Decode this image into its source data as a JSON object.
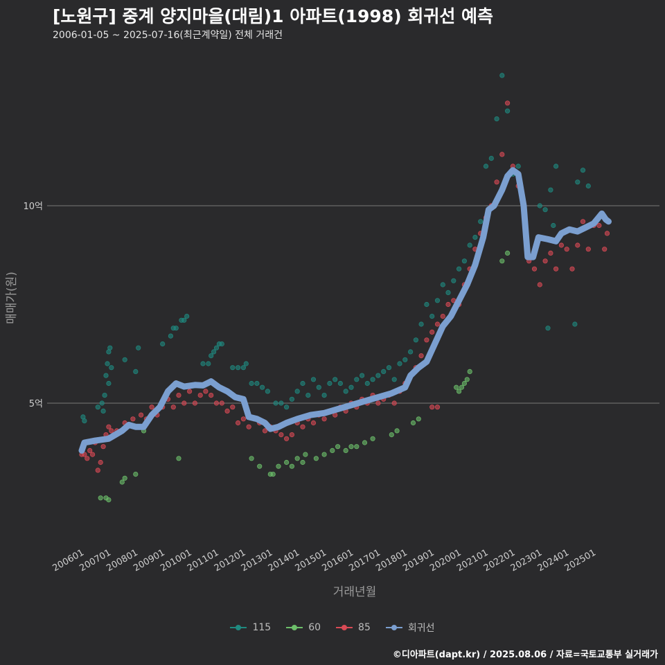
{
  "header": {
    "title": "[노원구] 중계 양지마을(대림)1 아파트(1998) 회귀선 예측",
    "subtitle": "2006-01-05 ~ 2025-07-16(최근계약일) 전체 거래건"
  },
  "caption": "©디아파트(dapt.kr) / 2025.08.06 / 자료=국토교통부 실거래가",
  "chart_data": {
    "type": "scatter",
    "xlabel": "거래년월",
    "ylabel": "매매가(원)",
    "x_range": [
      "2006-01",
      "2025-08"
    ],
    "y_range_eok": [
      2.5,
      14.0
    ],
    "y_ticks": [
      {
        "value": 5,
        "label": "5억"
      },
      {
        "value": 10,
        "label": "10억"
      }
    ],
    "x_ticks": [
      "200601",
      "200701",
      "200801",
      "200901",
      "201001",
      "201101",
      "201201",
      "201301",
      "201401",
      "201501",
      "201601",
      "201701",
      "201801",
      "201901",
      "202001",
      "202101",
      "202201",
      "202301",
      "202401",
      "202501"
    ],
    "grid": "horizontal major",
    "legend_position": "bottom",
    "legend": [
      "115",
      "60",
      "85",
      "회귀선"
    ],
    "colors": {
      "115": "#1f8a80",
      "60": "#6dbf6a",
      "85": "#d94a55",
      "회귀선": "#7b9fd0"
    },
    "series": [
      {
        "name": "115",
        "points": [
          [
            2006.05,
            4.65
          ],
          [
            2006.1,
            4.55
          ],
          [
            2006.6,
            4.9
          ],
          [
            2006.75,
            5.0
          ],
          [
            2006.8,
            4.8
          ],
          [
            2006.85,
            5.2
          ],
          [
            2006.9,
            5.7
          ],
          [
            2006.95,
            6.0
          ],
          [
            2007.0,
            6.3
          ],
          [
            2007.05,
            6.4
          ],
          [
            2007.1,
            5.9
          ],
          [
            2007.0,
            5.5
          ],
          [
            2007.6,
            6.1
          ],
          [
            2008.0,
            5.8
          ],
          [
            2008.1,
            6.4
          ],
          [
            2009.0,
            6.5
          ],
          [
            2009.3,
            6.7
          ],
          [
            2009.4,
            6.9
          ],
          [
            2009.5,
            6.9
          ],
          [
            2009.7,
            7.1
          ],
          [
            2009.8,
            7.1
          ],
          [
            2009.9,
            7.2
          ],
          [
            2010.5,
            6.0
          ],
          [
            2010.7,
            6.0
          ],
          [
            2010.8,
            6.2
          ],
          [
            2010.9,
            6.3
          ],
          [
            2011.0,
            6.4
          ],
          [
            2011.1,
            6.5
          ],
          [
            2011.2,
            6.5
          ],
          [
            2011.6,
            5.9
          ],
          [
            2011.8,
            5.9
          ],
          [
            2012.0,
            5.9
          ],
          [
            2012.1,
            6.0
          ],
          [
            2012.3,
            5.5
          ],
          [
            2012.5,
            5.5
          ],
          [
            2012.7,
            5.4
          ],
          [
            2012.9,
            5.3
          ],
          [
            2013.2,
            5.0
          ],
          [
            2013.4,
            5.0
          ],
          [
            2013.6,
            4.9
          ],
          [
            2013.8,
            5.1
          ],
          [
            2014.0,
            5.3
          ],
          [
            2014.2,
            5.5
          ],
          [
            2014.4,
            5.2
          ],
          [
            2014.6,
            5.6
          ],
          [
            2014.8,
            5.4
          ],
          [
            2015.0,
            5.2
          ],
          [
            2015.2,
            5.5
          ],
          [
            2015.4,
            5.6
          ],
          [
            2015.6,
            5.5
          ],
          [
            2015.8,
            5.3
          ],
          [
            2016.0,
            5.4
          ],
          [
            2016.2,
            5.6
          ],
          [
            2016.4,
            5.7
          ],
          [
            2016.6,
            5.5
          ],
          [
            2016.8,
            5.6
          ],
          [
            2017.0,
            5.7
          ],
          [
            2017.2,
            5.8
          ],
          [
            2017.4,
            5.9
          ],
          [
            2017.6,
            5.6
          ],
          [
            2017.8,
            6.0
          ],
          [
            2018.0,
            6.1
          ],
          [
            2018.2,
            6.3
          ],
          [
            2018.4,
            6.6
          ],
          [
            2018.6,
            7.0
          ],
          [
            2018.8,
            7.5
          ],
          [
            2019.0,
            7.2
          ],
          [
            2019.2,
            7.6
          ],
          [
            2019.4,
            8.0
          ],
          [
            2019.6,
            7.8
          ],
          [
            2019.8,
            8.1
          ],
          [
            2020.0,
            8.4
          ],
          [
            2020.2,
            8.6
          ],
          [
            2020.4,
            9.0
          ],
          [
            2020.6,
            9.2
          ],
          [
            2020.8,
            9.6
          ],
          [
            2021.0,
            11.0
          ],
          [
            2021.2,
            11.2
          ],
          [
            2021.4,
            12.2
          ],
          [
            2021.6,
            13.3
          ],
          [
            2021.8,
            12.4
          ],
          [
            2022.0,
            10.8
          ],
          [
            2022.2,
            11.0
          ],
          [
            2023.0,
            10.0
          ],
          [
            2023.2,
            9.9
          ],
          [
            2023.4,
            10.4
          ],
          [
            2023.5,
            9.5
          ],
          [
            2023.6,
            11.0
          ],
          [
            2024.4,
            10.6
          ],
          [
            2024.6,
            10.9
          ],
          [
            2024.8,
            10.5
          ],
          [
            2023.3,
            6.9
          ],
          [
            2024.3,
            7.0
          ]
        ]
      },
      {
        "name": "60",
        "points": [
          [
            2006.7,
            2.6
          ],
          [
            2006.9,
            2.6
          ],
          [
            2007.0,
            2.55
          ],
          [
            2007.5,
            3.0
          ],
          [
            2007.6,
            3.1
          ],
          [
            2008.0,
            3.2
          ],
          [
            2008.3,
            4.3
          ],
          [
            2009.6,
            3.6
          ],
          [
            2012.3,
            3.6
          ],
          [
            2012.6,
            3.4
          ],
          [
            2013.0,
            3.2
          ],
          [
            2013.1,
            3.2
          ],
          [
            2013.3,
            3.4
          ],
          [
            2013.6,
            3.5
          ],
          [
            2013.8,
            3.4
          ],
          [
            2014.0,
            3.6
          ],
          [
            2014.2,
            3.5
          ],
          [
            2014.3,
            3.7
          ],
          [
            2014.7,
            3.6
          ],
          [
            2015.0,
            3.7
          ],
          [
            2015.3,
            3.8
          ],
          [
            2015.5,
            3.9
          ],
          [
            2015.8,
            3.8
          ],
          [
            2016.0,
            3.9
          ],
          [
            2016.2,
            3.9
          ],
          [
            2016.5,
            4.0
          ],
          [
            2016.8,
            4.1
          ],
          [
            2017.5,
            4.2
          ],
          [
            2017.7,
            4.3
          ],
          [
            2018.3,
            4.5
          ],
          [
            2018.5,
            4.6
          ],
          [
            2019.9,
            5.4
          ],
          [
            2020.0,
            5.3
          ],
          [
            2020.1,
            5.4
          ],
          [
            2020.2,
            5.5
          ],
          [
            2020.3,
            5.6
          ],
          [
            2020.4,
            5.8
          ],
          [
            2021.6,
            8.6
          ],
          [
            2021.8,
            8.8
          ]
        ]
      },
      {
        "name": "85",
        "points": [
          [
            2006.0,
            3.7
          ],
          [
            2006.1,
            3.7
          ],
          [
            2006.2,
            3.6
          ],
          [
            2006.3,
            3.8
          ],
          [
            2006.4,
            3.7
          ],
          [
            2006.5,
            4.0
          ],
          [
            2006.6,
            3.3
          ],
          [
            2006.7,
            3.5
          ],
          [
            2006.8,
            3.9
          ],
          [
            2006.9,
            4.2
          ],
          [
            2007.0,
            4.4
          ],
          [
            2007.1,
            4.3
          ],
          [
            2007.3,
            4.3
          ],
          [
            2007.6,
            4.5
          ],
          [
            2007.9,
            4.6
          ],
          [
            2008.2,
            4.7
          ],
          [
            2008.4,
            4.6
          ],
          [
            2008.6,
            4.9
          ],
          [
            2008.8,
            4.7
          ],
          [
            2009.0,
            4.9
          ],
          [
            2009.2,
            5.1
          ],
          [
            2009.4,
            4.9
          ],
          [
            2009.6,
            5.2
          ],
          [
            2009.8,
            5.0
          ],
          [
            2010.0,
            5.3
          ],
          [
            2010.2,
            5.0
          ],
          [
            2010.4,
            5.2
          ],
          [
            2010.6,
            5.3
          ],
          [
            2010.8,
            5.2
          ],
          [
            2011.0,
            5.0
          ],
          [
            2011.2,
            5.0
          ],
          [
            2011.4,
            4.8
          ],
          [
            2011.6,
            4.9
          ],
          [
            2011.8,
            4.5
          ],
          [
            2012.0,
            4.6
          ],
          [
            2012.2,
            4.4
          ],
          [
            2012.4,
            4.6
          ],
          [
            2012.6,
            4.5
          ],
          [
            2012.8,
            4.3
          ],
          [
            2013.0,
            4.4
          ],
          [
            2013.2,
            4.3
          ],
          [
            2013.4,
            4.2
          ],
          [
            2013.6,
            4.1
          ],
          [
            2013.8,
            4.2
          ],
          [
            2014.0,
            4.5
          ],
          [
            2014.2,
            4.4
          ],
          [
            2014.4,
            4.6
          ],
          [
            2014.6,
            4.5
          ],
          [
            2014.8,
            4.7
          ],
          [
            2015.0,
            4.6
          ],
          [
            2015.2,
            4.8
          ],
          [
            2015.4,
            4.7
          ],
          [
            2015.6,
            4.9
          ],
          [
            2015.8,
            4.8
          ],
          [
            2016.0,
            5.0
          ],
          [
            2016.2,
            4.9
          ],
          [
            2016.4,
            5.1
          ],
          [
            2016.6,
            5.0
          ],
          [
            2016.8,
            5.2
          ],
          [
            2017.0,
            5.0
          ],
          [
            2017.2,
            5.1
          ],
          [
            2017.4,
            5.2
          ],
          [
            2017.6,
            5.0
          ],
          [
            2017.8,
            5.3
          ],
          [
            2018.0,
            5.5
          ],
          [
            2018.2,
            5.7
          ],
          [
            2018.4,
            5.9
          ],
          [
            2018.6,
            6.2
          ],
          [
            2018.8,
            6.6
          ],
          [
            2019.0,
            6.8
          ],
          [
            2019.2,
            7.0
          ],
          [
            2019.4,
            7.2
          ],
          [
            2019.6,
            7.5
          ],
          [
            2019.8,
            7.6
          ],
          [
            2020.0,
            7.5
          ],
          [
            2020.2,
            8.0
          ],
          [
            2020.4,
            8.4
          ],
          [
            2020.6,
            8.9
          ],
          [
            2020.8,
            9.3
          ],
          [
            2021.0,
            9.7
          ],
          [
            2021.2,
            10.0
          ],
          [
            2021.4,
            10.6
          ],
          [
            2021.6,
            11.3
          ],
          [
            2021.8,
            12.6
          ],
          [
            2022.0,
            11.0
          ],
          [
            2022.2,
            10.5
          ],
          [
            2022.6,
            8.6
          ],
          [
            2022.8,
            8.4
          ],
          [
            2023.0,
            8.0
          ],
          [
            2023.2,
            8.6
          ],
          [
            2023.4,
            8.8
          ],
          [
            2023.6,
            8.4
          ],
          [
            2023.8,
            9.0
          ],
          [
            2024.0,
            8.9
          ],
          [
            2024.2,
            8.4
          ],
          [
            2024.4,
            9.0
          ],
          [
            2024.6,
            9.6
          ],
          [
            2024.8,
            8.9
          ],
          [
            2025.0,
            9.5
          ],
          [
            2025.2,
            9.5
          ],
          [
            2025.4,
            8.9
          ],
          [
            2025.5,
            9.3
          ],
          [
            2019.0,
            4.9
          ],
          [
            2019.2,
            4.9
          ]
        ]
      }
    ],
    "regression": {
      "name": "회귀선",
      "points": [
        [
          2006.0,
          3.8
        ],
        [
          2006.1,
          4.0
        ],
        [
          2006.5,
          4.05
        ],
        [
          2007.0,
          4.1
        ],
        [
          2007.5,
          4.3
        ],
        [
          2007.75,
          4.45
        ],
        [
          2008.0,
          4.4
        ],
        [
          2008.3,
          4.4
        ],
        [
          2008.6,
          4.7
        ],
        [
          2008.9,
          4.9
        ],
        [
          2009.2,
          5.3
        ],
        [
          2009.5,
          5.5
        ],
        [
          2009.8,
          5.42
        ],
        [
          2010.2,
          5.46
        ],
        [
          2010.5,
          5.45
        ],
        [
          2010.8,
          5.55
        ],
        [
          2011.1,
          5.4
        ],
        [
          2011.4,
          5.3
        ],
        [
          2011.7,
          5.15
        ],
        [
          2012.0,
          5.1
        ],
        [
          2012.2,
          4.65
        ],
        [
          2012.5,
          4.6
        ],
        [
          2012.8,
          4.5
        ],
        [
          2013.0,
          4.35
        ],
        [
          2013.3,
          4.4
        ],
        [
          2013.6,
          4.5
        ],
        [
          2014.0,
          4.6
        ],
        [
          2014.5,
          4.7
        ],
        [
          2015.0,
          4.75
        ],
        [
          2015.5,
          4.85
        ],
        [
          2016.0,
          4.95
        ],
        [
          2016.5,
          5.05
        ],
        [
          2017.0,
          5.15
        ],
        [
          2017.5,
          5.25
        ],
        [
          2018.0,
          5.4
        ],
        [
          2018.2,
          5.7
        ],
        [
          2018.5,
          5.9
        ],
        [
          2018.8,
          6.05
        ],
        [
          2019.1,
          6.5
        ],
        [
          2019.4,
          6.95
        ],
        [
          2019.7,
          7.2
        ],
        [
          2020.0,
          7.6
        ],
        [
          2020.3,
          8.0
        ],
        [
          2020.6,
          8.5
        ],
        [
          2020.9,
          9.2
        ],
        [
          2021.1,
          9.9
        ],
        [
          2021.3,
          10.0
        ],
        [
          2021.6,
          10.4
        ],
        [
          2021.8,
          10.75
        ],
        [
          2022.0,
          10.9
        ],
        [
          2022.2,
          10.8
        ],
        [
          2022.4,
          10.0
        ],
        [
          2022.55,
          8.7
        ],
        [
          2022.75,
          8.7
        ],
        [
          2022.95,
          9.2
        ],
        [
          2023.3,
          9.15
        ],
        [
          2023.6,
          9.1
        ],
        [
          2023.8,
          9.3
        ],
        [
          2024.1,
          9.4
        ],
        [
          2024.4,
          9.35
        ],
        [
          2024.7,
          9.45
        ],
        [
          2025.0,
          9.55
        ],
        [
          2025.3,
          9.8
        ],
        [
          2025.45,
          9.65
        ],
        [
          2025.55,
          9.6
        ]
      ]
    }
  }
}
